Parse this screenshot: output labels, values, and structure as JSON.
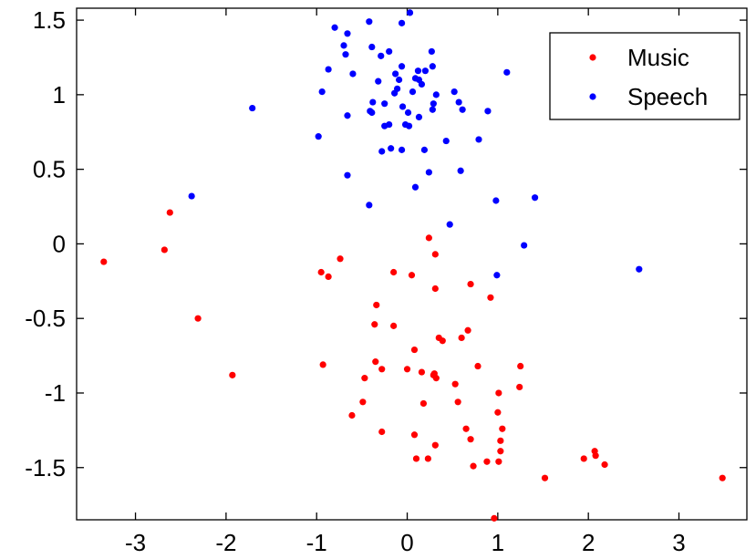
{
  "chart_data": {
    "type": "scatter",
    "title": "",
    "xlabel": "",
    "ylabel": "",
    "xlim": [
      -3.65,
      3.75
    ],
    "ylim": [
      -1.85,
      1.58
    ],
    "xticks": [
      -3,
      -2,
      -1,
      0,
      1,
      2,
      3
    ],
    "yticks": [
      1.5,
      1,
      0.5,
      0,
      -0.5,
      -1,
      -1.5
    ],
    "xtick_labels": [
      "-3",
      "-2",
      "-1",
      "0",
      "1",
      "2",
      "3"
    ],
    "ytick_labels": [
      "1.5",
      "1",
      "0.5",
      "0",
      "-0.5",
      "-1",
      "-1.5"
    ],
    "grid": false,
    "legend_position": "top-right",
    "series": [
      {
        "name": "Music",
        "color": "#ff0000",
        "points": [
          [
            -3.35,
            -0.12
          ],
          [
            -2.68,
            -0.04
          ],
          [
            -2.62,
            0.21
          ],
          [
            -2.31,
            -0.5
          ],
          [
            -1.93,
            -0.88
          ],
          [
            -0.95,
            -0.19
          ],
          [
            -0.87,
            -0.22
          ],
          [
            -0.74,
            -0.1
          ],
          [
            -0.93,
            -0.81
          ],
          [
            -0.34,
            -0.41
          ],
          [
            -0.36,
            -0.54
          ],
          [
            -0.15,
            -0.19
          ],
          [
            -0.15,
            -0.55
          ],
          [
            -0.35,
            -0.79
          ],
          [
            -0.47,
            -0.9
          ],
          [
            -0.49,
            -1.06
          ],
          [
            -0.61,
            -1.15
          ],
          [
            -0.28,
            -0.84
          ],
          [
            -0.28,
            -1.26
          ],
          [
            0.05,
            -0.21
          ],
          [
            0.24,
            0.04
          ],
          [
            0.31,
            -0.07
          ],
          [
            0.31,
            -0.3
          ],
          [
            0.08,
            -0.71
          ],
          [
            0.35,
            -0.63
          ],
          [
            0.39,
            -0.65
          ],
          [
            0.7,
            -0.27
          ],
          [
            0.92,
            -0.36
          ],
          [
            0.67,
            -0.58
          ],
          [
            0.6,
            -0.63
          ],
          [
            0.78,
            -0.82
          ],
          [
            1.25,
            -0.82
          ],
          [
            0.0,
            -0.84
          ],
          [
            0.16,
            -0.86
          ],
          [
            0.29,
            -0.88
          ],
          [
            0.3,
            -0.87
          ],
          [
            0.32,
            -0.9
          ],
          [
            0.53,
            -0.94
          ],
          [
            1.01,
            -1.0
          ],
          [
            1.24,
            -0.96
          ],
          [
            0.56,
            -1.06
          ],
          [
            0.18,
            -1.07
          ],
          [
            1.0,
            -1.13
          ],
          [
            0.65,
            -1.24
          ],
          [
            1.05,
            -1.24
          ],
          [
            0.7,
            -1.31
          ],
          [
            0.08,
            -1.28
          ],
          [
            0.31,
            -1.35
          ],
          [
            1.03,
            -1.32
          ],
          [
            1.03,
            -1.39
          ],
          [
            0.1,
            -1.44
          ],
          [
            0.23,
            -1.44
          ],
          [
            0.73,
            -1.49
          ],
          [
            0.88,
            -1.46
          ],
          [
            1.01,
            -1.46
          ],
          [
            1.52,
            -1.57
          ],
          [
            1.95,
            -1.44
          ],
          [
            2.07,
            -1.39
          ],
          [
            2.08,
            -1.42
          ],
          [
            2.18,
            -1.48
          ],
          [
            3.48,
            -1.57
          ],
          [
            0.96,
            -1.84
          ]
        ]
      },
      {
        "name": "Speech",
        "color": "#0000ff",
        "points": [
          [
            -0.8,
            1.45
          ],
          [
            -0.7,
            1.33
          ],
          [
            -0.66,
            1.41
          ],
          [
            -0.42,
            1.49
          ],
          [
            -0.06,
            1.48
          ],
          [
            0.03,
            1.55
          ],
          [
            -0.39,
            1.32
          ],
          [
            -0.29,
            1.26
          ],
          [
            -0.2,
            1.29
          ],
          [
            -0.68,
            1.27
          ],
          [
            -0.87,
            1.17
          ],
          [
            -0.94,
            1.02
          ],
          [
            -0.6,
            1.14
          ],
          [
            -0.32,
            1.09
          ],
          [
            -0.13,
            1.14
          ],
          [
            -0.06,
            1.19
          ],
          [
            0.12,
            1.16
          ],
          [
            0.2,
            1.16
          ],
          [
            0.27,
            1.29
          ],
          [
            0.28,
            1.19
          ],
          [
            0.13,
            1.1
          ],
          [
            0.09,
            1.11
          ],
          [
            -0.09,
            1.1
          ],
          [
            -0.11,
            1.04
          ],
          [
            -0.14,
            1.01
          ],
          [
            0.06,
            1.02
          ],
          [
            0.16,
            1.07
          ],
          [
            0.32,
            1.0
          ],
          [
            0.52,
            1.02
          ],
          [
            0.57,
            0.95
          ],
          [
            0.61,
            0.9
          ],
          [
            0.89,
            0.89
          ],
          [
            1.1,
            1.15
          ],
          [
            -0.38,
            0.95
          ],
          [
            -0.41,
            0.89
          ],
          [
            -0.39,
            0.88
          ],
          [
            -0.25,
            0.94
          ],
          [
            -0.05,
            0.92
          ],
          [
            0.01,
            0.88
          ],
          [
            0.29,
            0.94
          ],
          [
            0.28,
            0.9
          ],
          [
            -0.66,
            0.86
          ],
          [
            -0.25,
            0.79
          ],
          [
            -0.2,
            0.8
          ],
          [
            -0.02,
            0.8
          ],
          [
            0.02,
            0.79
          ],
          [
            0.13,
            0.85
          ],
          [
            0.43,
            0.69
          ],
          [
            0.79,
            0.7
          ],
          [
            -0.28,
            0.62
          ],
          [
            -0.18,
            0.64
          ],
          [
            -0.06,
            0.63
          ],
          [
            0.19,
            0.63
          ],
          [
            -0.66,
            0.46
          ],
          [
            0.24,
            0.48
          ],
          [
            0.59,
            0.49
          ],
          [
            0.09,
            0.38
          ],
          [
            -1.71,
            0.91
          ],
          [
            -0.98,
            0.72
          ],
          [
            -2.38,
            0.32
          ],
          [
            -0.42,
            0.26
          ],
          [
            0.47,
            0.13
          ],
          [
            0.98,
            0.29
          ],
          [
            1.41,
            0.31
          ],
          [
            1.29,
            -0.01
          ],
          [
            0.99,
            -0.21
          ],
          [
            2.56,
            -0.17
          ]
        ]
      }
    ]
  }
}
